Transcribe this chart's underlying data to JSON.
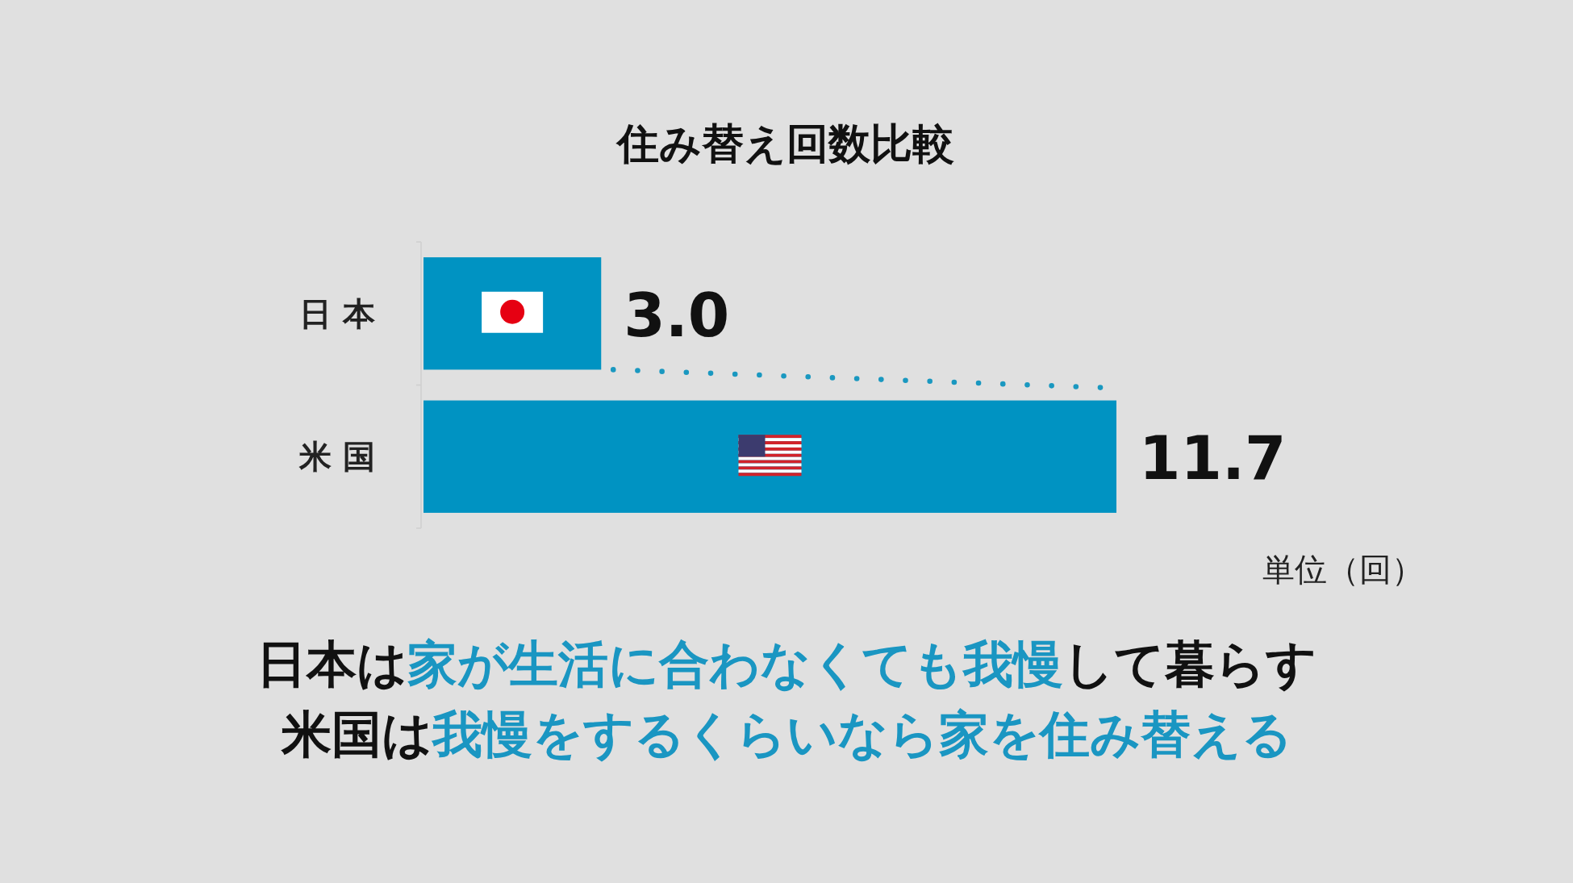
{
  "chart_data": {
    "type": "bar",
    "orientation": "horizontal",
    "title": "住み替え回数比較",
    "categories": [
      "日 本",
      "米 国"
    ],
    "values": [
      3.0,
      11.7
    ],
    "color": "#0093c2",
    "value_labels": [
      "3.0",
      "11.7"
    ],
    "annotations": [
      "単位（回）",
      "日本は家が生活に合わなくても我慢して暮らす",
      "米国は我慢をするくらいなら家を住み替える"
    ]
  }
}
